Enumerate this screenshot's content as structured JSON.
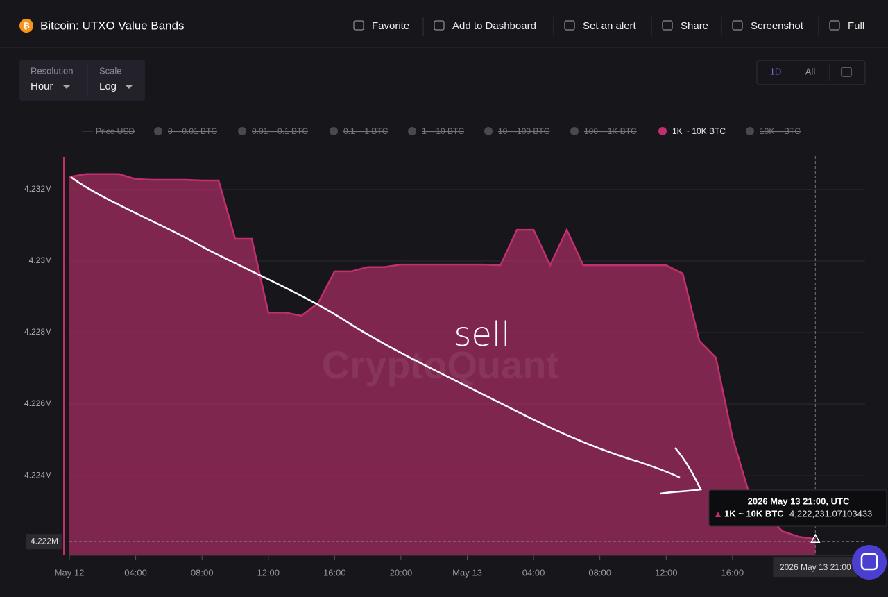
{
  "header": {
    "title": "Bitcoin: UTXO Value Bands",
    "buttons": [
      "Favorite",
      "Add to Dashboard",
      "Set an alert",
      "Share",
      "Screenshot",
      "Full"
    ]
  },
  "controls": {
    "resolution_label": "Resolution",
    "resolution": "Hour",
    "scale_label": "Scale",
    "scale": "Log",
    "ranges": [
      "1D",
      "All"
    ]
  },
  "watermark": "CryptoQuant",
  "chart_data": {
    "type": "area",
    "legend": [
      {
        "name": "Price USD",
        "visible": false
      },
      {
        "name": "0 ~ 0.01 BTC",
        "visible": false
      },
      {
        "name": "0.01 ~ 0.1 BTC",
        "visible": false
      },
      {
        "name": "0.1 ~ 1 BTC",
        "visible": false
      },
      {
        "name": "1 ~ 10 BTC",
        "visible": false
      },
      {
        "name": "10 ~ 100 BTC",
        "visible": false
      },
      {
        "name": "100 ~ 1K BTC",
        "visible": false
      },
      {
        "name": "1K ~ 10K BTC",
        "visible": true
      },
      {
        "name": "10K ~ BTC",
        "visible": false
      }
    ],
    "x": [
      "2026-05-12T00:00",
      "2026-05-12T01:00",
      "2026-05-12T02:00",
      "2026-05-12T03:00",
      "2026-05-12T04:00",
      "2026-05-12T05:00",
      "2026-05-12T06:00",
      "2026-05-12T07:00",
      "2026-05-12T08:00",
      "2026-05-12T09:00",
      "2026-05-12T10:00",
      "2026-05-12T11:00",
      "2026-05-12T12:00",
      "2026-05-12T13:00",
      "2026-05-12T14:00",
      "2026-05-12T15:00",
      "2026-05-12T16:00",
      "2026-05-12T17:00",
      "2026-05-12T18:00",
      "2026-05-12T19:00",
      "2026-05-12T20:00",
      "2026-05-12T21:00",
      "2026-05-12T22:00",
      "2026-05-12T23:00",
      "2026-05-13T00:00",
      "2026-05-13T01:00",
      "2026-05-13T02:00",
      "2026-05-13T03:00",
      "2026-05-13T04:00",
      "2026-05-13T05:00",
      "2026-05-13T06:00",
      "2026-05-13T07:00",
      "2026-05-13T08:00",
      "2026-05-13T09:00",
      "2026-05-13T10:00",
      "2026-05-13T11:00",
      "2026-05-13T12:00",
      "2026-05-13T13:00",
      "2026-05-13T14:00",
      "2026-05-13T15:00",
      "2026-05-13T16:00",
      "2026-05-13T17:00",
      "2026-05-13T18:00",
      "2026-05-13T19:00",
      "2026-05-13T20:00",
      "2026-05-13T21:00"
    ],
    "series": [
      {
        "name": "1K ~ 10K BTC",
        "color": "#c0306e",
        "values": [
          4232350,
          4232430,
          4232430,
          4232430,
          4232290,
          4232270,
          4232270,
          4232270,
          4232250,
          4232250,
          4230620,
          4230620,
          4228560,
          4228560,
          4228470,
          4228820,
          4229710,
          4229710,
          4229830,
          4229830,
          4229900,
          4229900,
          4229900,
          4229900,
          4229900,
          4229900,
          4229880,
          4230870,
          4230870,
          4229880,
          4230870,
          4229880,
          4229880,
          4229880,
          4229880,
          4229880,
          4229880,
          4229650,
          4227770,
          4227300,
          4225070,
          4223510,
          4222930,
          4222450,
          4222290,
          4222231.07103433
        ]
      }
    ],
    "xlim": [
      "2026-05-12T00:00",
      "2026-05-14T00:00"
    ],
    "xticks": [
      {
        "value": "2026-05-12T00:00",
        "label": "May 12"
      },
      {
        "value": "2026-05-12T04:00",
        "label": "04:00"
      },
      {
        "value": "2026-05-12T08:00",
        "label": "08:00"
      },
      {
        "value": "2026-05-12T12:00",
        "label": "12:00"
      },
      {
        "value": "2026-05-12T16:00",
        "label": "16:00"
      },
      {
        "value": "2026-05-12T20:00",
        "label": "20:00"
      },
      {
        "value": "2026-05-13T00:00",
        "label": "May 13"
      },
      {
        "value": "2026-05-13T04:00",
        "label": "04:00"
      },
      {
        "value": "2026-05-13T08:00",
        "label": "08:00"
      },
      {
        "value": "2026-05-13T12:00",
        "label": "12:00"
      },
      {
        "value": "2026-05-13T16:00",
        "label": "16:00"
      }
    ],
    "ylim": [
      4221770,
      4232930
    ],
    "yticks": [
      {
        "value": 4224000,
        "label": "4.224M"
      },
      {
        "value": 4226000,
        "label": "4.226M"
      },
      {
        "value": 4228000,
        "label": "4.228M"
      },
      {
        "value": 4230000,
        "label": "4.23M"
      },
      {
        "value": 4232000,
        "label": "4.232M"
      }
    ],
    "grid": true,
    "annotation": "sell",
    "tooltip": {
      "time": "2026 May 13 21:00, UTC",
      "value_label": "4,222,231.07103433"
    },
    "crosshair": {
      "y_label": "4.222M",
      "x_label": "2026 May 13 21:00"
    }
  }
}
